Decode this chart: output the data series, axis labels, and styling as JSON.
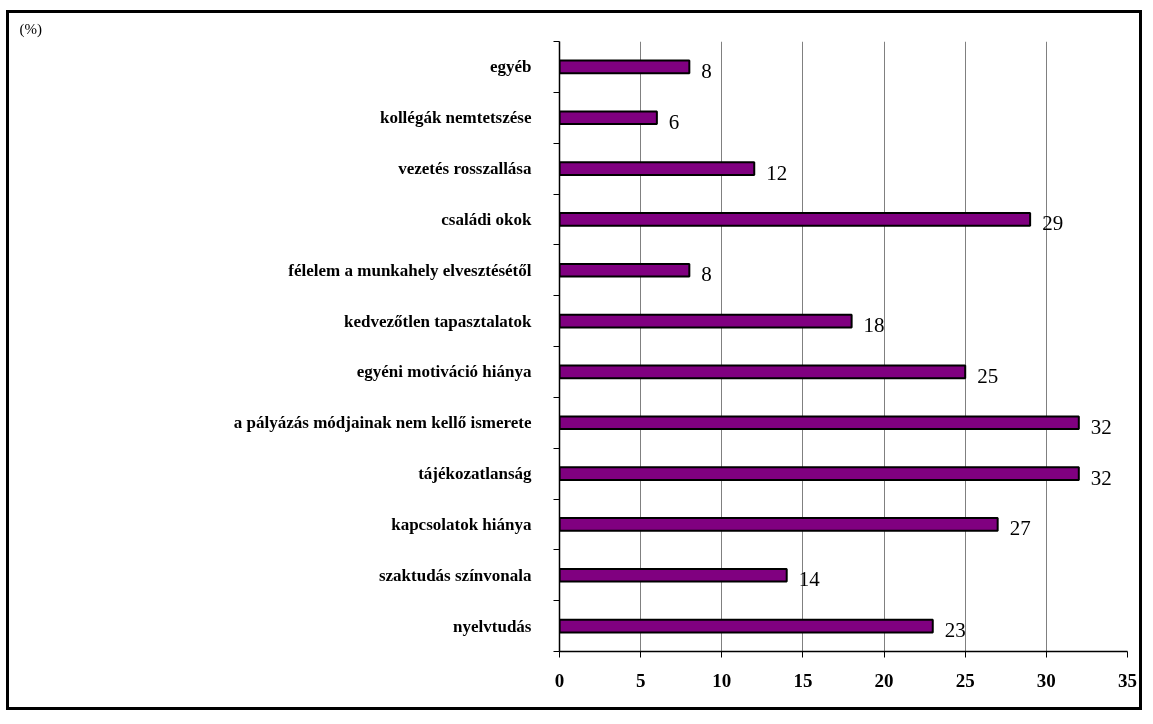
{
  "chart_data": {
    "type": "bar",
    "orientation": "horizontal",
    "title": "(%)",
    "categories": [
      "egyéb",
      "kollégák nemtetszése",
      "vezetés rosszallása",
      "családi okok",
      "félelem a munkahely elvesztésétől",
      "kedvezőtlen tapasztalatok",
      "egyéni motiváció hiánya",
      "a pályázás módjainak nem kellő ismerete",
      "tájékozatlanság",
      "kapcsolatok hiánya",
      "szaktudás színvonala",
      "nyelvtudás"
    ],
    "values": [
      8,
      6,
      12,
      29,
      8,
      18,
      25,
      32,
      32,
      27,
      14,
      23
    ],
    "color": "#800080",
    "xlim": [
      0,
      35
    ],
    "xticks": [
      0,
      5,
      10,
      15,
      20,
      25,
      30,
      35
    ],
    "grid": "x",
    "data_labels": true
  }
}
